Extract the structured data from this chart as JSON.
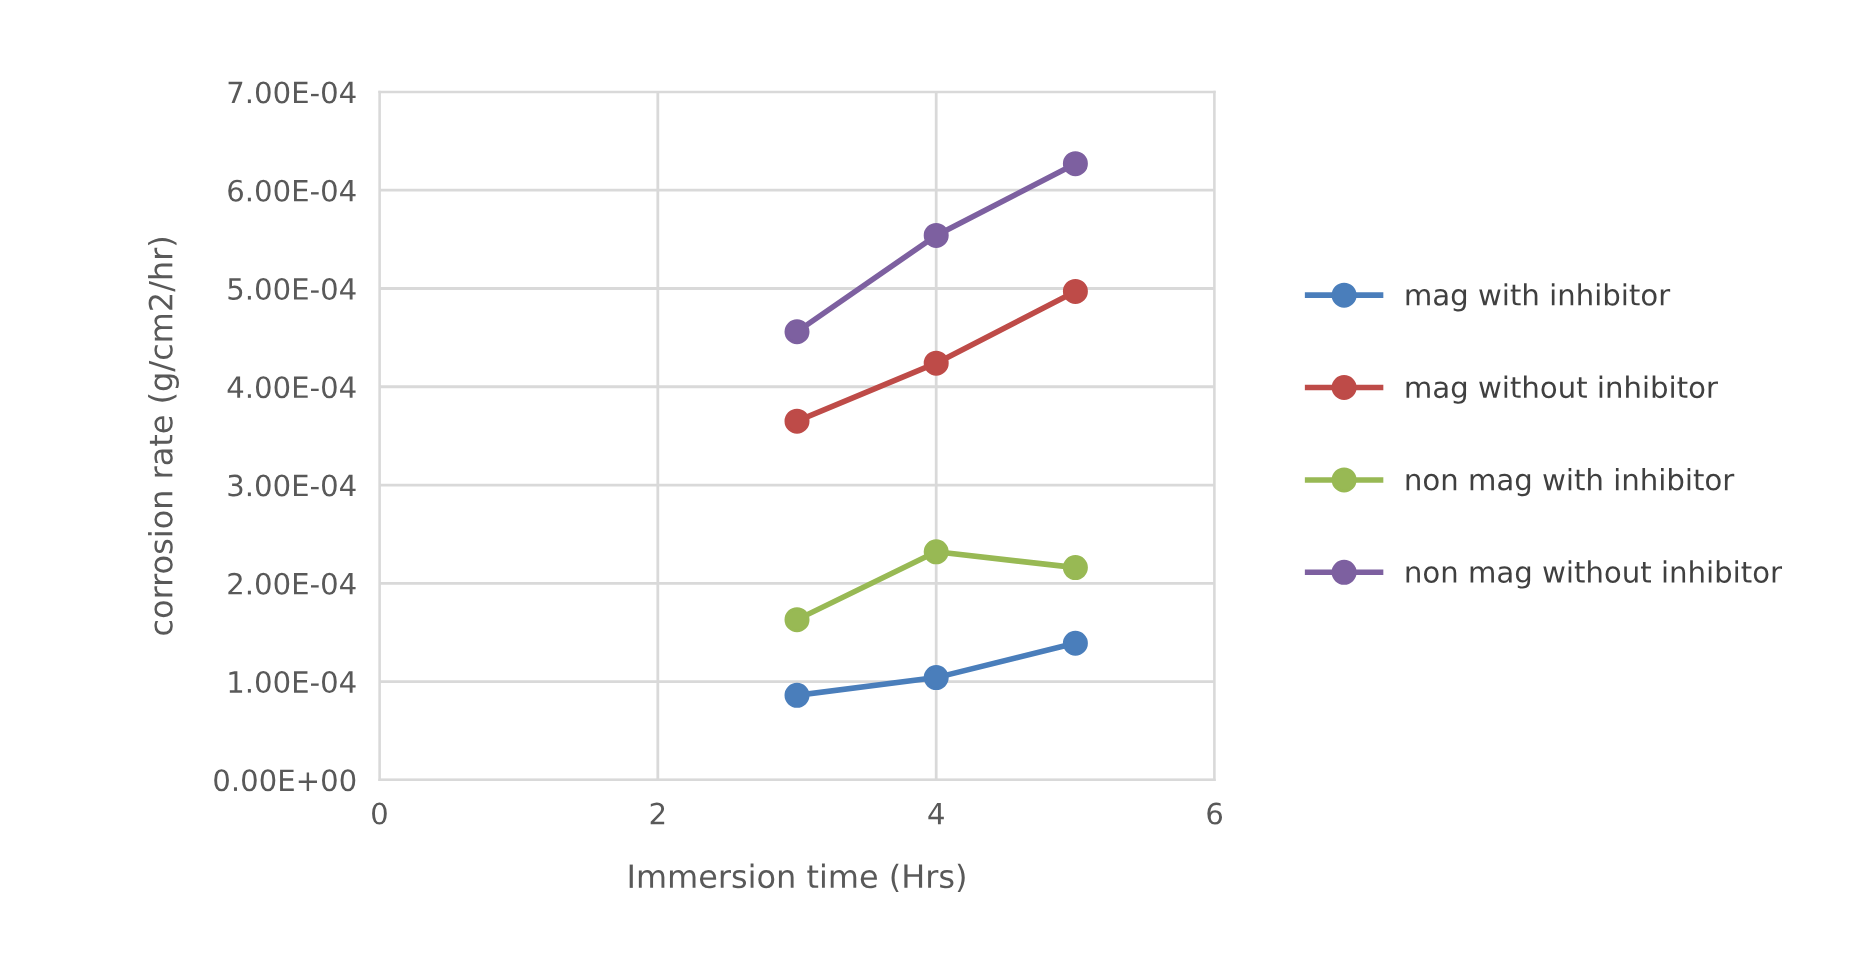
{
  "chart_data": {
    "type": "line",
    "xlabel": "Immersion time (Hrs)",
    "ylabel": "corrosion rate (g/cm2/hr)",
    "xlim": [
      0,
      6
    ],
    "xticks": [
      0,
      2,
      4,
      6
    ],
    "ylim": [
      0,
      0.0007
    ],
    "yticks": [
      {
        "value": 0,
        "label": "0.00E+00"
      },
      {
        "value": 0.0001,
        "label": "1.00E-04"
      },
      {
        "value": 0.0002,
        "label": "2.00E-04"
      },
      {
        "value": 0.0003,
        "label": "3.00E-04"
      },
      {
        "value": 0.0004,
        "label": "4.00E-04"
      },
      {
        "value": 0.0005,
        "label": "5.00E-04"
      },
      {
        "value": 0.0006,
        "label": "6.00E-04"
      },
      {
        "value": 0.0007,
        "label": "7.00E-04"
      }
    ],
    "grid": true,
    "legend": "right",
    "marker": "circle",
    "line_style": "solid",
    "x": [
      3,
      4,
      5
    ],
    "series": [
      {
        "name": "mag with inhibitor",
        "color": "#4a7ebb",
        "values": [
          8.6e-05,
          0.000104,
          0.000139
        ]
      },
      {
        "name": "mag without inhibitor",
        "color": "#be4b48",
        "values": [
          0.000365,
          0.000424,
          0.000497
        ]
      },
      {
        "name": "non mag with inhibitor",
        "color": "#98b954",
        "values": [
          0.000163,
          0.000232,
          0.000216
        ]
      },
      {
        "name": "non mag without inhibitor",
        "color": "#7d60a0",
        "values": [
          0.000456,
          0.000554,
          0.000627
        ]
      }
    ]
  }
}
